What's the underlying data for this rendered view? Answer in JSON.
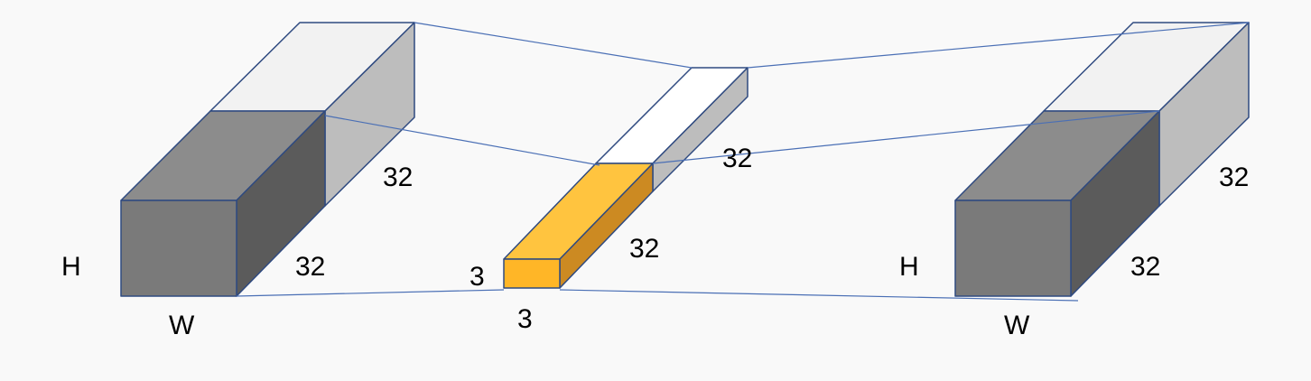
{
  "input_block": {
    "height_label": "H",
    "width_label": "W",
    "depth_label": "32",
    "channel_label": "32"
  },
  "kernel_block": {
    "height_label": "3",
    "width_label": "3",
    "depth_label": "32",
    "channel_label": "32"
  },
  "output_block": {
    "height_label": "H",
    "width_label": "W",
    "depth_label": "32",
    "channel_label": "32"
  },
  "colors": {
    "background": "#f9f9f9",
    "front_face": "#7a7a7a",
    "side_face": "#5b5b5b",
    "top_face": "#8c8c8c",
    "top_light": "#f2f2f2",
    "side_light": "#bdbdbd",
    "kernel_front": "#ffb627",
    "kernel_top": "#ffc43f",
    "kernel_side": "#cc8a22",
    "edge": "#2f4a80",
    "connector": "#4a6fb5"
  }
}
